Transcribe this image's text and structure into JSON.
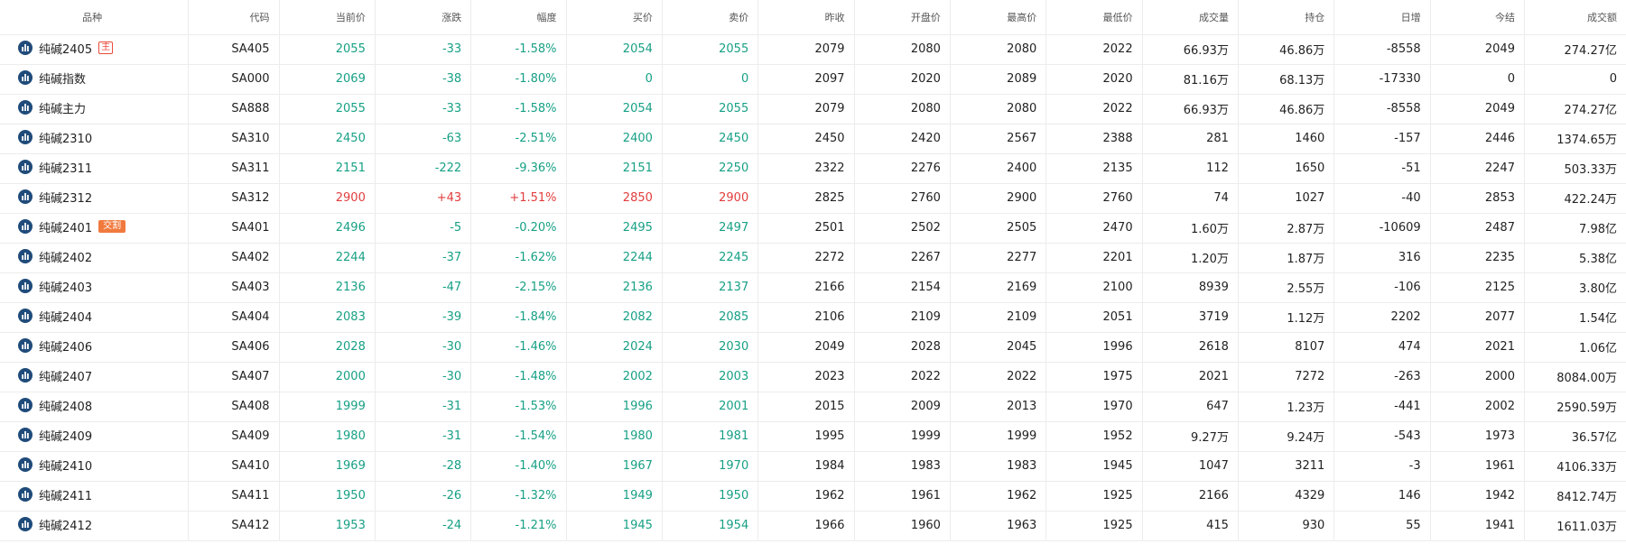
{
  "colors": {
    "down": "#17a085",
    "up": "#e23d3d",
    "icon": "#1f4b7a",
    "badge_outline": "#e94a3a",
    "badge_filled": "#f07a3e"
  },
  "table": {
    "headers": [
      "品种",
      "代码",
      "当前价",
      "涨跌",
      "幅度",
      "买价",
      "卖价",
      "昨收",
      "开盘价",
      "最高价",
      "最低价",
      "成交量",
      "持仓",
      "日增",
      "今结",
      "成交额"
    ],
    "rows": [
      {
        "name": "纯碱2405",
        "badge": "主",
        "badge_style": "outline",
        "trend": "down",
        "code": "SA405",
        "price": "2055",
        "change": "-33",
        "pct": "-1.58%",
        "bid": "2054",
        "ask": "2055",
        "prev_close": "2079",
        "open": "2080",
        "high": "2080",
        "low": "2022",
        "volume": "66.93万",
        "oi": "46.86万",
        "daily_inc": "-8558",
        "settle": "2049",
        "turnover": "274.27亿"
      },
      {
        "name": "纯碱指数",
        "badge": "",
        "badge_style": "",
        "trend": "down",
        "code": "SA000",
        "price": "2069",
        "change": "-38",
        "pct": "-1.80%",
        "bid": "0",
        "ask": "0",
        "prev_close": "2097",
        "open": "2020",
        "high": "2089",
        "low": "2020",
        "volume": "81.16万",
        "oi": "68.13万",
        "daily_inc": "-17330",
        "settle": "0",
        "turnover": "0"
      },
      {
        "name": "纯碱主力",
        "badge": "",
        "badge_style": "",
        "trend": "down",
        "code": "SA888",
        "price": "2055",
        "change": "-33",
        "pct": "-1.58%",
        "bid": "2054",
        "ask": "2055",
        "prev_close": "2079",
        "open": "2080",
        "high": "2080",
        "low": "2022",
        "volume": "66.93万",
        "oi": "46.86万",
        "daily_inc": "-8558",
        "settle": "2049",
        "turnover": "274.27亿"
      },
      {
        "name": "纯碱2310",
        "badge": "",
        "badge_style": "",
        "trend": "down",
        "code": "SA310",
        "price": "2450",
        "change": "-63",
        "pct": "-2.51%",
        "bid": "2400",
        "ask": "2450",
        "prev_close": "2450",
        "open": "2420",
        "high": "2567",
        "low": "2388",
        "volume": "281",
        "oi": "1460",
        "daily_inc": "-157",
        "settle": "2446",
        "turnover": "1374.65万"
      },
      {
        "name": "纯碱2311",
        "badge": "",
        "badge_style": "",
        "trend": "down",
        "code": "SA311",
        "price": "2151",
        "change": "-222",
        "pct": "-9.36%",
        "bid": "2151",
        "ask": "2250",
        "prev_close": "2322",
        "open": "2276",
        "high": "2400",
        "low": "2135",
        "volume": "112",
        "oi": "1650",
        "daily_inc": "-51",
        "settle": "2247",
        "turnover": "503.33万"
      },
      {
        "name": "纯碱2312",
        "badge": "",
        "badge_style": "",
        "trend": "up",
        "code": "SA312",
        "price": "2900",
        "change": "+43",
        "pct": "+1.51%",
        "bid": "2850",
        "ask": "2900",
        "prev_close": "2825",
        "open": "2760",
        "high": "2900",
        "low": "2760",
        "volume": "74",
        "oi": "1027",
        "daily_inc": "-40",
        "settle": "2853",
        "turnover": "422.24万"
      },
      {
        "name": "纯碱2401",
        "badge": "交割",
        "badge_style": "filled",
        "trend": "down",
        "code": "SA401",
        "price": "2496",
        "change": "-5",
        "pct": "-0.20%",
        "bid": "2495",
        "ask": "2497",
        "prev_close": "2501",
        "open": "2502",
        "high": "2505",
        "low": "2470",
        "volume": "1.60万",
        "oi": "2.87万",
        "daily_inc": "-10609",
        "settle": "2487",
        "turnover": "7.98亿"
      },
      {
        "name": "纯碱2402",
        "badge": "",
        "badge_style": "",
        "trend": "down",
        "code": "SA402",
        "price": "2244",
        "change": "-37",
        "pct": "-1.62%",
        "bid": "2244",
        "ask": "2245",
        "prev_close": "2272",
        "open": "2267",
        "high": "2277",
        "low": "2201",
        "volume": "1.20万",
        "oi": "1.87万",
        "daily_inc": "316",
        "settle": "2235",
        "turnover": "5.38亿"
      },
      {
        "name": "纯碱2403",
        "badge": "",
        "badge_style": "",
        "trend": "down",
        "code": "SA403",
        "price": "2136",
        "change": "-47",
        "pct": "-2.15%",
        "bid": "2136",
        "ask": "2137",
        "prev_close": "2166",
        "open": "2154",
        "high": "2169",
        "low": "2100",
        "volume": "8939",
        "oi": "2.55万",
        "daily_inc": "-106",
        "settle": "2125",
        "turnover": "3.80亿"
      },
      {
        "name": "纯碱2404",
        "badge": "",
        "badge_style": "",
        "trend": "down",
        "code": "SA404",
        "price": "2083",
        "change": "-39",
        "pct": "-1.84%",
        "bid": "2082",
        "ask": "2085",
        "prev_close": "2106",
        "open": "2109",
        "high": "2109",
        "low": "2051",
        "volume": "3719",
        "oi": "1.12万",
        "daily_inc": "2202",
        "settle": "2077",
        "turnover": "1.54亿"
      },
      {
        "name": "纯碱2406",
        "badge": "",
        "badge_style": "",
        "trend": "down",
        "code": "SA406",
        "price": "2028",
        "change": "-30",
        "pct": "-1.46%",
        "bid": "2024",
        "ask": "2030",
        "prev_close": "2049",
        "open": "2028",
        "high": "2045",
        "low": "1996",
        "volume": "2618",
        "oi": "8107",
        "daily_inc": "474",
        "settle": "2021",
        "turnover": "1.06亿"
      },
      {
        "name": "纯碱2407",
        "badge": "",
        "badge_style": "",
        "trend": "down",
        "code": "SA407",
        "price": "2000",
        "change": "-30",
        "pct": "-1.48%",
        "bid": "2002",
        "ask": "2003",
        "prev_close": "2023",
        "open": "2022",
        "high": "2022",
        "low": "1975",
        "volume": "2021",
        "oi": "7272",
        "daily_inc": "-263",
        "settle": "2000",
        "turnover": "8084.00万"
      },
      {
        "name": "纯碱2408",
        "badge": "",
        "badge_style": "",
        "trend": "down",
        "code": "SA408",
        "price": "1999",
        "change": "-31",
        "pct": "-1.53%",
        "bid": "1996",
        "ask": "2001",
        "prev_close": "2015",
        "open": "2009",
        "high": "2013",
        "low": "1970",
        "volume": "647",
        "oi": "1.23万",
        "daily_inc": "-441",
        "settle": "2002",
        "turnover": "2590.59万"
      },
      {
        "name": "纯碱2409",
        "badge": "",
        "badge_style": "",
        "trend": "down",
        "code": "SA409",
        "price": "1980",
        "change": "-31",
        "pct": "-1.54%",
        "bid": "1980",
        "ask": "1981",
        "prev_close": "1995",
        "open": "1999",
        "high": "1999",
        "low": "1952",
        "volume": "9.27万",
        "oi": "9.24万",
        "daily_inc": "-543",
        "settle": "1973",
        "turnover": "36.57亿"
      },
      {
        "name": "纯碱2410",
        "badge": "",
        "badge_style": "",
        "trend": "down",
        "code": "SA410",
        "price": "1969",
        "change": "-28",
        "pct": "-1.40%",
        "bid": "1967",
        "ask": "1970",
        "prev_close": "1984",
        "open": "1983",
        "high": "1983",
        "low": "1945",
        "volume": "1047",
        "oi": "3211",
        "daily_inc": "-3",
        "settle": "1961",
        "turnover": "4106.33万"
      },
      {
        "name": "纯碱2411",
        "badge": "",
        "badge_style": "",
        "trend": "down",
        "code": "SA411",
        "price": "1950",
        "change": "-26",
        "pct": "-1.32%",
        "bid": "1949",
        "ask": "1950",
        "prev_close": "1962",
        "open": "1961",
        "high": "1962",
        "low": "1925",
        "volume": "2166",
        "oi": "4329",
        "daily_inc": "146",
        "settle": "1942",
        "turnover": "8412.74万"
      },
      {
        "name": "纯碱2412",
        "badge": "",
        "badge_style": "",
        "trend": "down",
        "code": "SA412",
        "price": "1953",
        "change": "-24",
        "pct": "-1.21%",
        "bid": "1945",
        "ask": "1954",
        "prev_close": "1966",
        "open": "1960",
        "high": "1963",
        "low": "1925",
        "volume": "415",
        "oi": "930",
        "daily_inc": "55",
        "settle": "1941",
        "turnover": "1611.03万"
      }
    ]
  }
}
